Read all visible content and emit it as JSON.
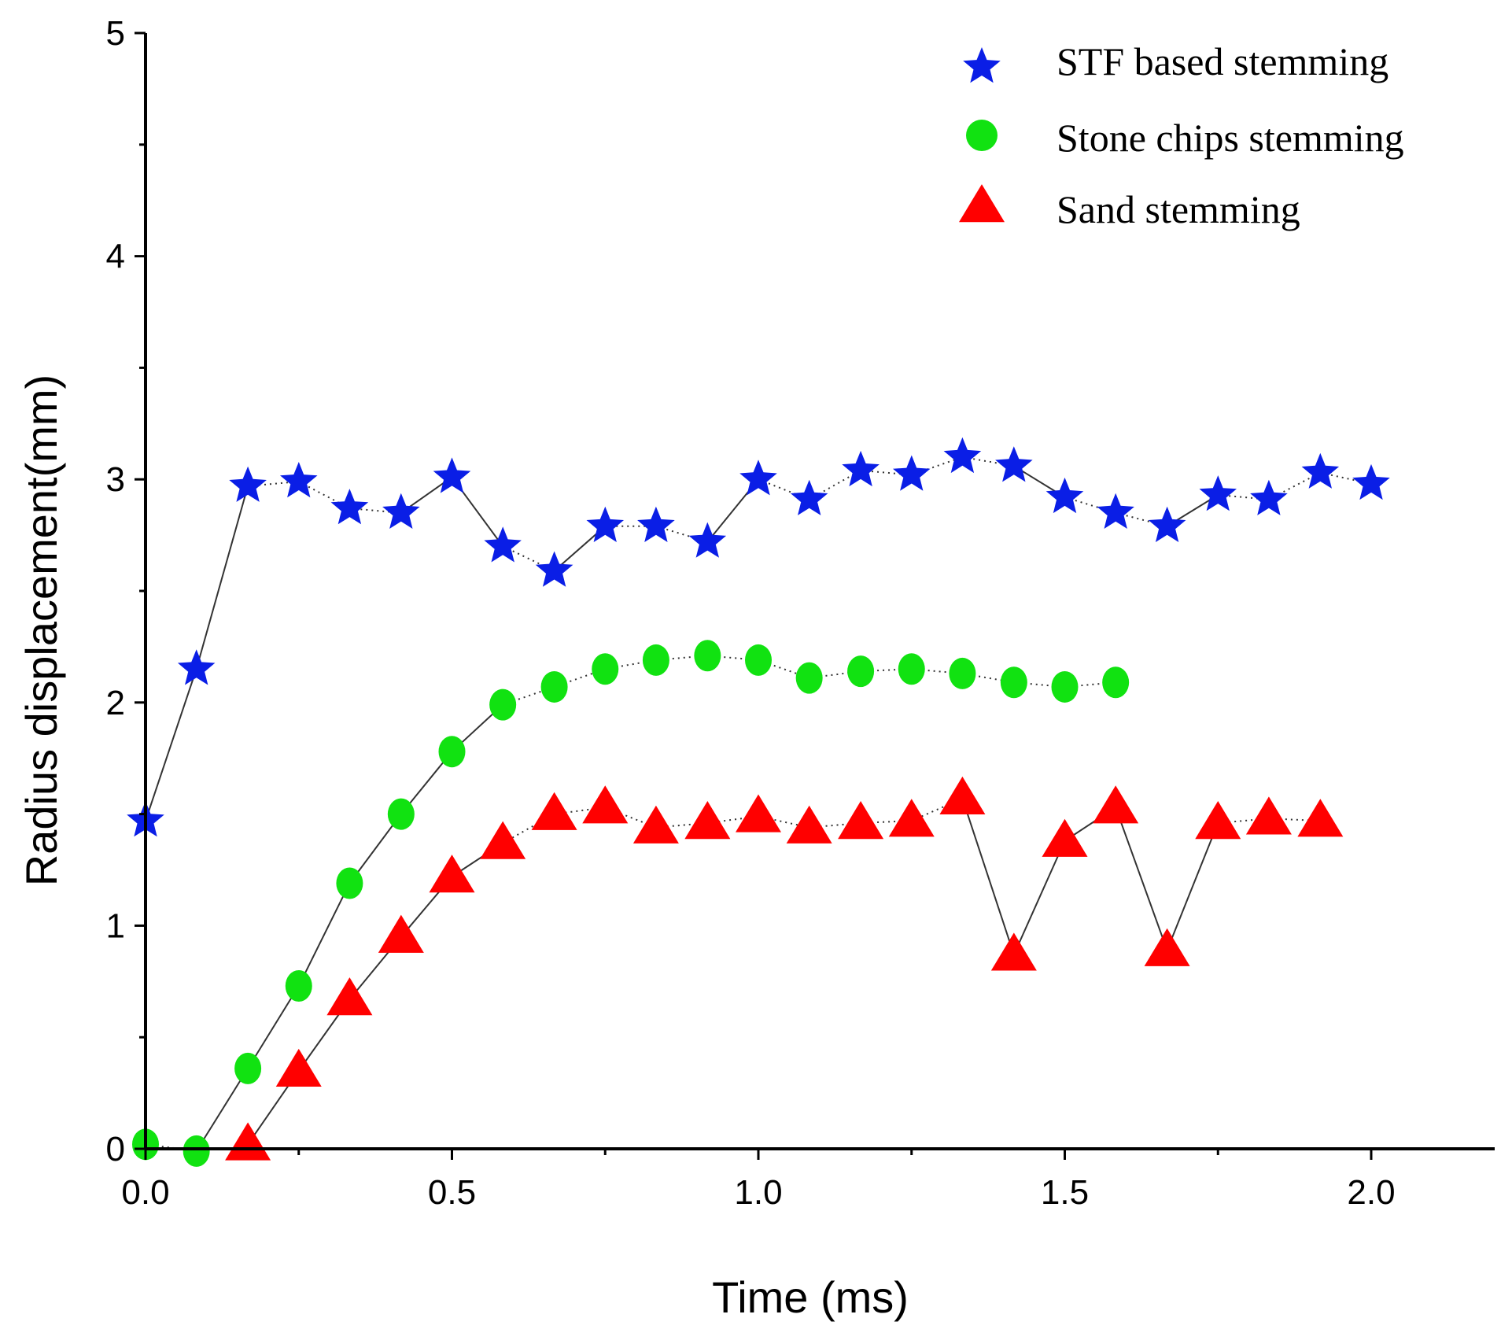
{
  "chart_data": {
    "type": "scatter",
    "title": "",
    "xlabel": "Time (ms)",
    "ylabel": "Radius displacement(mm)",
    "xlim": [
      0,
      2.2
    ],
    "ylim": [
      0,
      5
    ],
    "xticks": [
      "0.0",
      "0.5",
      "1.0",
      "1.5",
      "2.0"
    ],
    "yticks": [
      "0",
      "1",
      "2",
      "3",
      "4",
      "5"
    ],
    "grid": false,
    "legend_position": "top-right",
    "series": [
      {
        "name": "STF based stemming",
        "marker": "star",
        "color": "#0a1ee6",
        "line": "solid-dotted",
        "x": [
          0.0,
          0.083,
          0.167,
          0.25,
          0.333,
          0.417,
          0.5,
          0.583,
          0.667,
          0.75,
          0.833,
          0.917,
          1.0,
          1.083,
          1.167,
          1.25,
          1.333,
          1.417,
          1.5,
          1.583,
          1.667,
          1.75,
          1.833,
          1.917,
          2.0
        ],
        "y": [
          1.47,
          2.15,
          2.97,
          2.99,
          2.87,
          2.85,
          3.01,
          2.7,
          2.59,
          2.79,
          2.79,
          2.72,
          3.0,
          2.91,
          3.04,
          3.02,
          3.1,
          3.06,
          2.92,
          2.85,
          2.79,
          2.93,
          2.91,
          3.03,
          2.98
        ]
      },
      {
        "name": "Stone chips stemming",
        "marker": "circle",
        "color": "#11e211",
        "line": "dotted",
        "x": [
          0.0,
          0.083,
          0.167,
          0.25,
          0.333,
          0.417,
          0.5,
          0.583,
          0.667,
          0.75,
          0.833,
          0.917,
          1.0,
          1.083,
          1.167,
          1.25,
          1.333,
          1.417,
          1.5,
          1.583
        ],
        "y": [
          0.02,
          -0.01,
          0.36,
          0.73,
          1.19,
          1.5,
          1.78,
          1.99,
          2.07,
          2.15,
          2.19,
          2.21,
          2.19,
          2.11,
          2.14,
          2.15,
          2.13,
          2.09,
          2.07,
          2.09
        ]
      },
      {
        "name": "Sand stemming",
        "marker": "triangle",
        "color": "#ff0000",
        "line": "dotted",
        "x": [
          0.167,
          0.25,
          0.333,
          0.417,
          0.5,
          0.583,
          0.667,
          0.75,
          0.833,
          0.917,
          1.0,
          1.083,
          1.167,
          1.25,
          1.333,
          1.417,
          1.5,
          1.583,
          1.667,
          1.75,
          1.833,
          1.917
        ],
        "y": [
          0.02,
          0.35,
          0.67,
          0.95,
          1.22,
          1.37,
          1.5,
          1.53,
          1.44,
          1.46,
          1.49,
          1.44,
          1.46,
          1.47,
          1.57,
          0.87,
          1.38,
          1.53,
          0.89,
          1.46,
          1.48,
          1.47
        ]
      }
    ]
  }
}
